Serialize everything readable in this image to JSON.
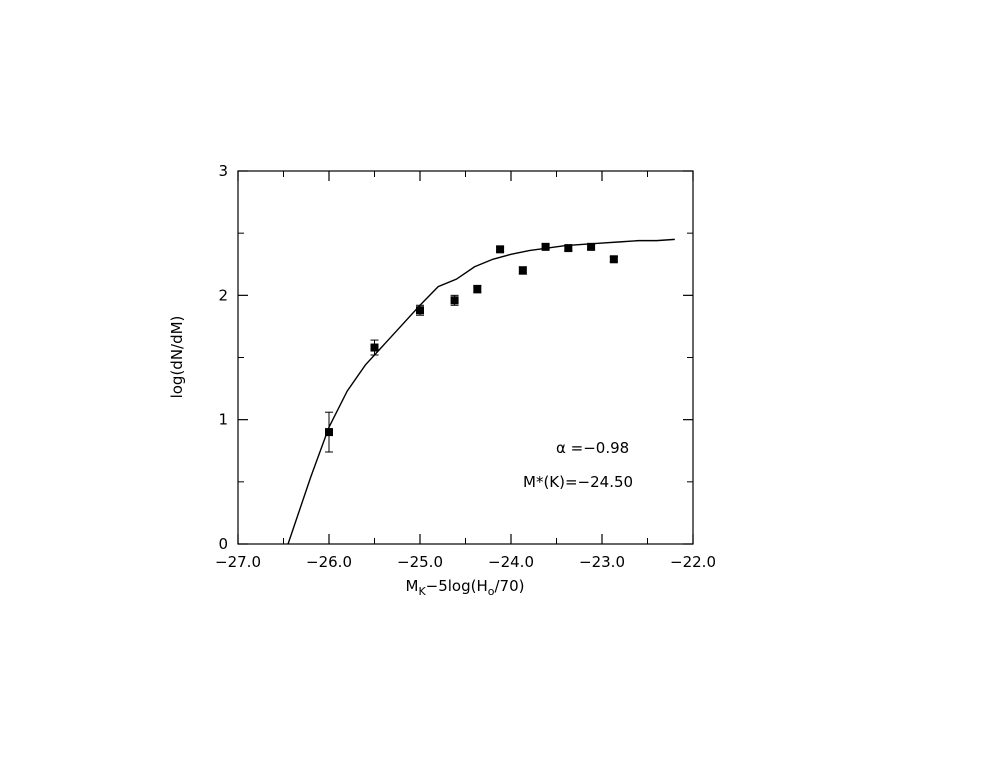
{
  "chart_data": {
    "type": "scatter",
    "title": "",
    "xlabel": {
      "main": "M",
      "main_sub": "K",
      "mid": "−5log(H",
      "mid_sub": "o",
      "end": "/70)"
    },
    "ylabel": "log(dN/dM)",
    "xlim": [
      -27.0,
      -22.0
    ],
    "ylim": [
      0,
      3
    ],
    "x_ticks": [
      {
        "value": -27.0,
        "label": "−27.0"
      },
      {
        "value": -26.0,
        "label": "−26.0"
      },
      {
        "value": -25.0,
        "label": "−25.0"
      },
      {
        "value": -24.0,
        "label": "−24.0"
      },
      {
        "value": -23.0,
        "label": "−23.0"
      },
      {
        "value": -22.0,
        "label": "−22.0"
      }
    ],
    "y_ticks": [
      {
        "value": 0,
        "label": "0"
      },
      {
        "value": 1,
        "label": "1"
      },
      {
        "value": 2,
        "label": "2"
      },
      {
        "value": 3,
        "label": "3"
      }
    ],
    "minor_x_step": 0.5,
    "minor_y_step": 0.5,
    "points": [
      {
        "x": -26.0,
        "y": 0.9,
        "err": 0.16
      },
      {
        "x": -25.5,
        "y": 1.58,
        "err": 0.06
      },
      {
        "x": -25.0,
        "y": 1.88,
        "err": 0.04
      },
      {
        "x": -24.62,
        "y": 1.96,
        "err": 0.04
      },
      {
        "x": -24.37,
        "y": 2.05,
        "err": 0.03
      },
      {
        "x": -24.12,
        "y": 2.37,
        "err": 0.02
      },
      {
        "x": -23.87,
        "y": 2.2,
        "err": 0.03
      },
      {
        "x": -23.62,
        "y": 2.39,
        "err": 0.02
      },
      {
        "x": -23.37,
        "y": 2.38,
        "err": 0.02
      },
      {
        "x": -23.12,
        "y": 2.39,
        "err": 0.02
      },
      {
        "x": -22.87,
        "y": 2.29,
        "err": 0.02
      }
    ],
    "fit_curve": {
      "x": [
        -26.45,
        -26.2,
        -26.0,
        -25.8,
        -25.6,
        -25.4,
        -25.2,
        -25.0,
        -24.8,
        -24.6,
        -24.4,
        -24.2,
        -24.0,
        -23.8,
        -23.6,
        -23.4,
        -23.2,
        -23.0,
        -22.8,
        -22.6,
        -22.4,
        -22.2
      ],
      "y": [
        0.0,
        0.54,
        0.94,
        1.23,
        1.44,
        1.6,
        1.76,
        1.92,
        2.07,
        2.13,
        2.23,
        2.29,
        2.33,
        2.36,
        2.38,
        2.4,
        2.41,
        2.42,
        2.43,
        2.44,
        2.44,
        2.45
      ]
    },
    "annotations": [
      {
        "text": "α =−0.98"
      },
      {
        "text": "M*(K)=−24.50"
      }
    ],
    "grid": false,
    "legend": "none"
  }
}
